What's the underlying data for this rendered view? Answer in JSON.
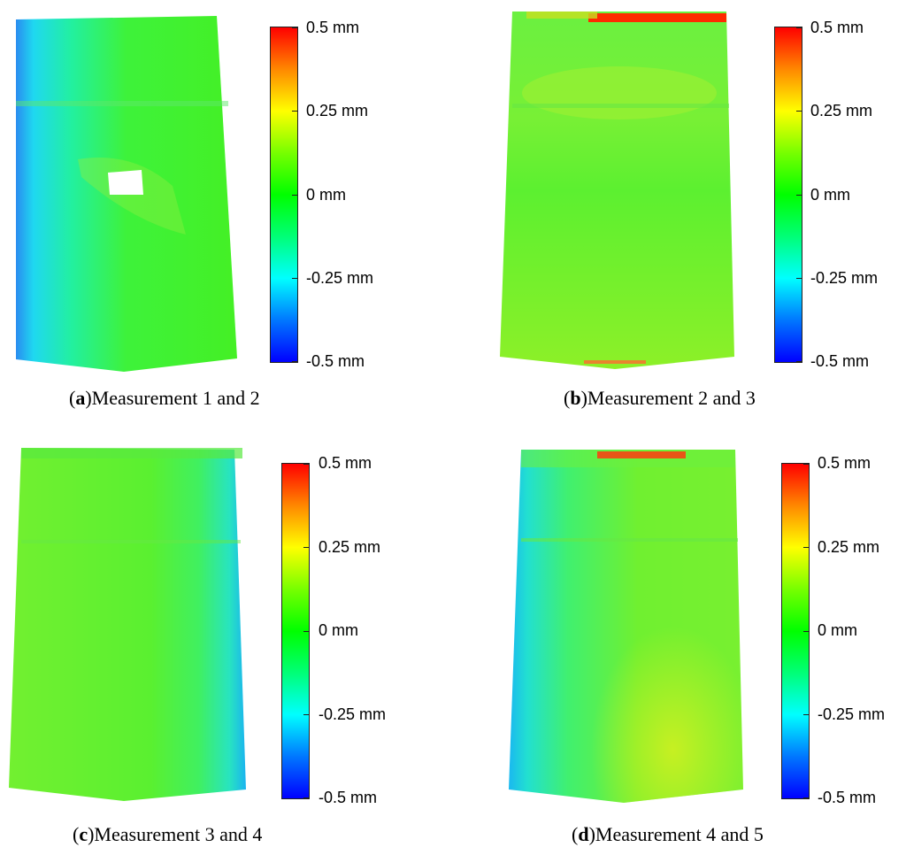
{
  "colorbar_ticks": [
    "0.5 mm",
    "0.25 mm",
    "0 mm",
    "-0.25 mm",
    "-0.5 mm"
  ],
  "colormap": [
    "#0000ff",
    "#00ffff",
    "#00ff00",
    "#ffff00",
    "#ff0000"
  ],
  "panels": [
    {
      "letter": "a",
      "caption": "Measurement 1 and 2"
    },
    {
      "letter": "b",
      "caption": "Measurement 2 and 3"
    },
    {
      "letter": "c",
      "caption": "Measurement 3 and 4"
    },
    {
      "letter": "d",
      "caption": "Measurement 4 and 5"
    }
  ]
}
